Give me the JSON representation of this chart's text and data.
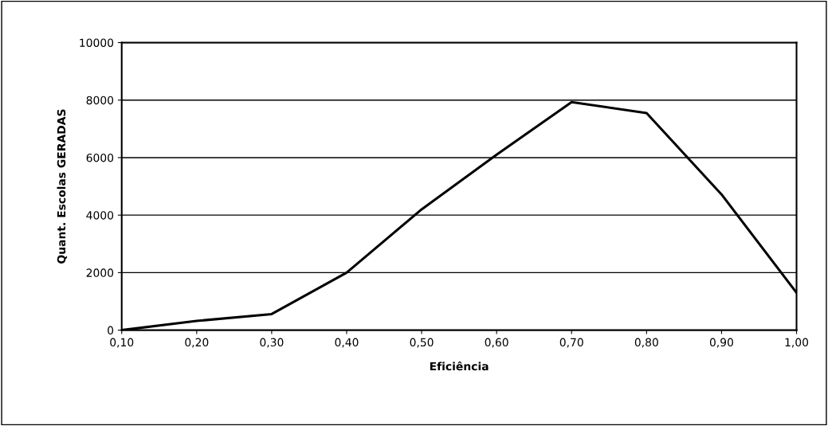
{
  "chart_data": {
    "type": "line",
    "xlabel": "Eficiência",
    "ylabel": "Quant. Escolas GERADAS",
    "x": [
      0.1,
      0.2,
      0.3,
      0.4,
      0.5,
      0.6,
      0.7,
      0.8,
      0.9,
      1.0
    ],
    "series": [
      {
        "color": "#000000",
        "values": [
          0,
          320,
          560,
          2000,
          4200,
          6100,
          7930,
          7550,
          4720,
          1300
        ]
      }
    ],
    "xlim": [
      0.1,
      1.0
    ],
    "xticks": [
      {
        "value": 0.1,
        "label": "0,10"
      },
      {
        "value": 0.2,
        "label": "0,20"
      },
      {
        "value": 0.3,
        "label": "0,30"
      },
      {
        "value": 0.4,
        "label": "0,40"
      },
      {
        "value": 0.5,
        "label": "0,50"
      },
      {
        "value": 0.6,
        "label": "0,60"
      },
      {
        "value": 0.7,
        "label": "0,70"
      },
      {
        "value": 0.8,
        "label": "0,80"
      },
      {
        "value": 0.9,
        "label": "0,90"
      },
      {
        "value": 1.0,
        "label": "1,00"
      }
    ],
    "ylim": [
      0,
      10000
    ],
    "yticks": [
      0,
      2000,
      4000,
      6000,
      8000,
      10000
    ],
    "grid": "y",
    "legend": false,
    "marker": "none",
    "line_style": "solid"
  }
}
